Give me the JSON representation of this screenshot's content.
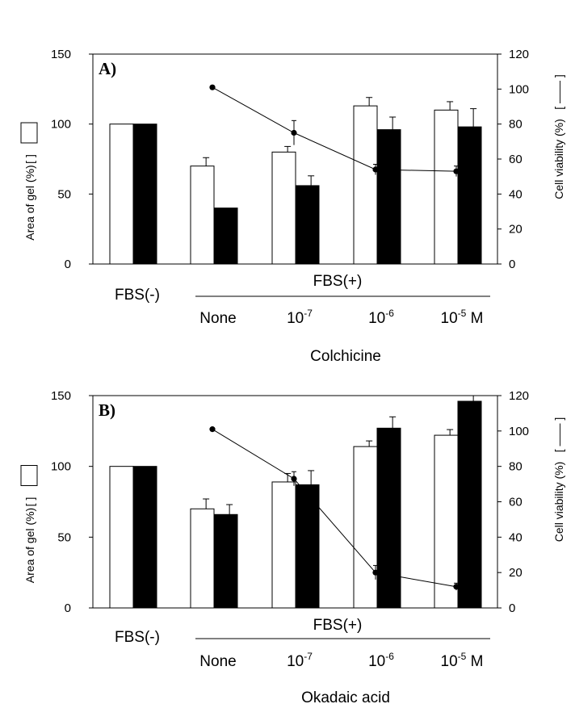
{
  "chart_data": [
    {
      "type": "bar",
      "panel_label": "A)",
      "group_label": "FBS(+)",
      "xlabel": "Colchicine",
      "categories": [
        "FBS(-)",
        "None",
        "10",
        "10",
        "10"
      ],
      "category_exponents": [
        "",
        "",
        "-7",
        "-6",
        "-5"
      ],
      "category_suffix": [
        "",
        "",
        "",
        "",
        " M"
      ],
      "ylabel_left": "Area of gel  (%)",
      "ylabel_right": "Cell viability  (%)",
      "ylim_left": [
        0,
        150
      ],
      "yticks_left": [
        0,
        50,
        100,
        150
      ],
      "ylim_right": [
        0,
        120
      ],
      "yticks_right": [
        0,
        20,
        40,
        60,
        80,
        100,
        120
      ],
      "series": [
        {
          "axis": "left",
          "style": "open-bar",
          "values": [
            100,
            70,
            80,
            113,
            110
          ],
          "errors": [
            0,
            6,
            4,
            6,
            6
          ]
        },
        {
          "axis": "left",
          "style": "filled-bar",
          "values": [
            100,
            40,
            56,
            96,
            98
          ],
          "errors": [
            0,
            0,
            7,
            9,
            13
          ]
        },
        {
          "axis": "right",
          "style": "line",
          "values": [
            null,
            101,
            75,
            54,
            53
          ],
          "errors": [
            0,
            0,
            7,
            3,
            3
          ]
        }
      ]
    },
    {
      "type": "bar",
      "panel_label": "B)",
      "group_label": "FBS(+)",
      "xlabel": "Okadaic acid",
      "categories": [
        "FBS(-)",
        "None",
        "10",
        "10",
        "10"
      ],
      "category_exponents": [
        "",
        "",
        "-7",
        "-6",
        "-5"
      ],
      "category_suffix": [
        "",
        "",
        "",
        "",
        " M"
      ],
      "ylabel_left": "Area of gel  (%)",
      "ylabel_right": "Cell viability  (%)",
      "ylim_left": [
        0,
        150
      ],
      "yticks_left": [
        0,
        50,
        100,
        150
      ],
      "ylim_right": [
        0,
        120
      ],
      "yticks_right": [
        0,
        20,
        40,
        60,
        80,
        100,
        120
      ],
      "series": [
        {
          "axis": "left",
          "style": "open-bar",
          "values": [
            100,
            70,
            89,
            114,
            122
          ],
          "errors": [
            0,
            7,
            6,
            4,
            4
          ]
        },
        {
          "axis": "left",
          "style": "filled-bar",
          "values": [
            100,
            66,
            87,
            127,
            146
          ],
          "errors": [
            0,
            7,
            10,
            8,
            4
          ]
        },
        {
          "axis": "right",
          "style": "line",
          "values": [
            null,
            101,
            73,
            20,
            12
          ],
          "errors": [
            0,
            0,
            4,
            4,
            2
          ]
        }
      ]
    }
  ]
}
